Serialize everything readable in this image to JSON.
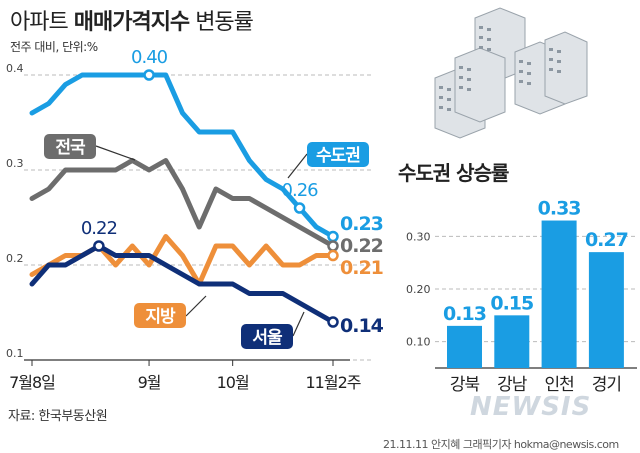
{
  "header": {
    "title_light": "아파트",
    "title_bold": "매매가격지수",
    "title_tail": "변동률",
    "subtitle": "전주 대비, 단위:%"
  },
  "footer": {
    "source": "자료: 한국부동산원",
    "credit": "21.11.11 안지혜 그래픽기자 hokma@newsis.com",
    "logo": "NEWSIS"
  },
  "colors": {
    "capital": "#1a9de3",
    "national": "#6d6d6d",
    "regional": "#ee8f3a",
    "seoul": "#0f2f78",
    "bar": "#1a9de3",
    "grid": "#bbbbbb"
  },
  "chart_data": [
    {
      "type": "line",
      "ylim": [
        0.1,
        0.4
      ],
      "yticks": [
        "0.1",
        "0.2",
        "0.3",
        "0.4"
      ],
      "x_labels": [
        "7월8일",
        "9월",
        "10월",
        "11월2주"
      ],
      "x_label_index": [
        0,
        7,
        12,
        18
      ],
      "grid": true,
      "series": [
        {
          "name": "수도권",
          "color": "#1a9de3",
          "values": [
            0.36,
            0.37,
            0.39,
            0.4,
            0.4,
            0.4,
            0.4,
            0.4,
            0.4,
            0.36,
            0.34,
            0.34,
            0.34,
            0.31,
            0.29,
            0.28,
            0.26,
            0.24,
            0.23
          ],
          "annotations": [
            {
              "index": 7,
              "label": "0.40"
            },
            {
              "index": 16,
              "label": "0.26"
            }
          ],
          "end_label": "0.23"
        },
        {
          "name": "전국",
          "color": "#6d6d6d",
          "values": [
            0.27,
            0.28,
            0.3,
            0.3,
            0.3,
            0.3,
            0.31,
            0.3,
            0.31,
            0.28,
            0.24,
            0.28,
            0.27,
            0.27,
            0.26,
            0.25,
            0.24,
            0.23,
            0.22
          ],
          "end_label": "0.22"
        },
        {
          "name": "지방",
          "color": "#ee8f3a",
          "values": [
            0.19,
            0.2,
            0.21,
            0.21,
            0.22,
            0.2,
            0.22,
            0.2,
            0.23,
            0.21,
            0.18,
            0.22,
            0.22,
            0.2,
            0.22,
            0.2,
            0.2,
            0.21,
            0.21
          ],
          "end_label": "0.21"
        },
        {
          "name": "서울",
          "color": "#0f2f78",
          "values": [
            0.18,
            0.2,
            0.2,
            0.21,
            0.22,
            0.21,
            0.21,
            0.21,
            0.2,
            0.19,
            0.18,
            0.18,
            0.18,
            0.17,
            0.17,
            0.17,
            0.16,
            0.15,
            0.14
          ],
          "annotations": [
            {
              "index": 4,
              "label": "0.22"
            }
          ],
          "end_label": "0.14"
        }
      ]
    },
    {
      "type": "bar",
      "title": "수도권 상승률",
      "categories": [
        "강북",
        "강남",
        "인천",
        "경기"
      ],
      "values": [
        0.13,
        0.15,
        0.33,
        0.27
      ],
      "value_labels": [
        "0.13",
        "0.15",
        "0.33",
        "0.27"
      ],
      "ylim": [
        0.05,
        0.35
      ],
      "yticks": [
        "0.10",
        "0.20",
        "0.30"
      ],
      "grid": true
    }
  ]
}
